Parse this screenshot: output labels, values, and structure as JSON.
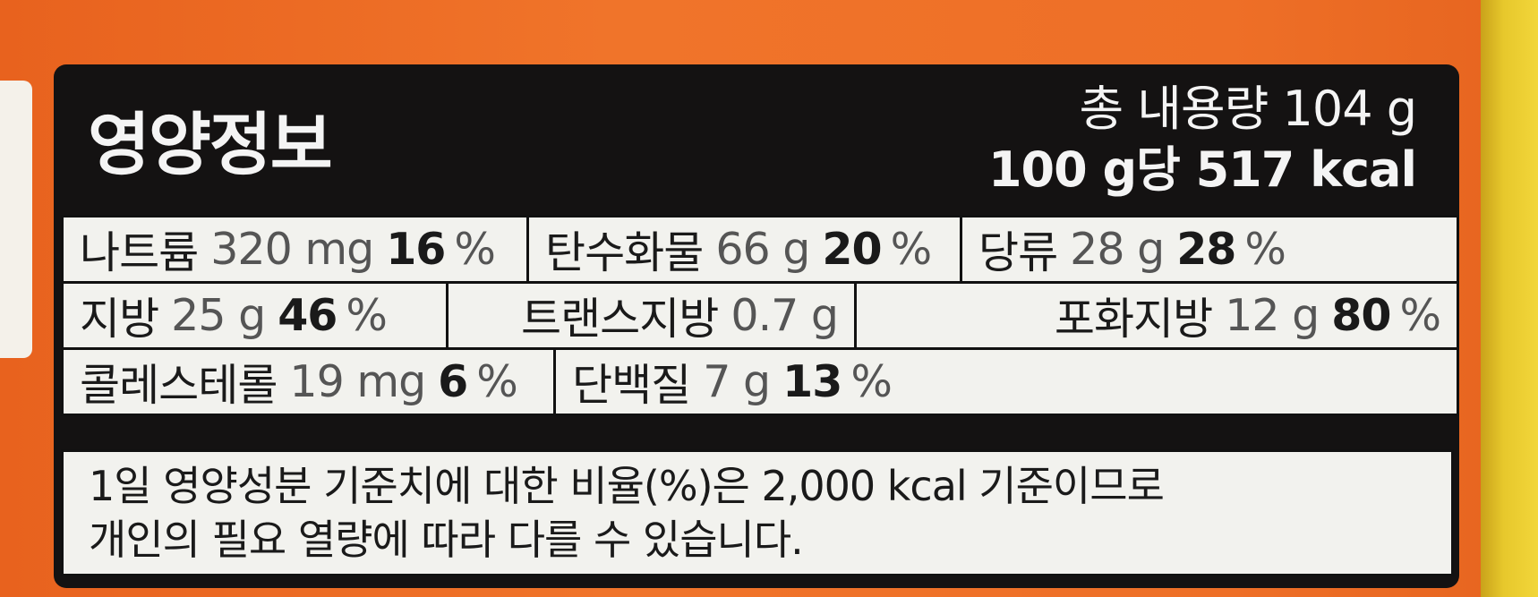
{
  "panel": {
    "title": "영양정보",
    "total_content": "총 내용량 104 g",
    "per_100g": "100 g당 517 kcal"
  },
  "nutrients": {
    "row1": [
      {
        "name": "나트륨",
        "amount": "320 mg",
        "pct": "16",
        "pct_sign": "%"
      },
      {
        "name": "탄수화물",
        "amount": "66 g",
        "pct": "20",
        "pct_sign": "%"
      },
      {
        "name": "당류",
        "amount": "28 g",
        "pct": "28",
        "pct_sign": "%"
      }
    ],
    "row2": [
      {
        "name": "지방",
        "amount": "25 g",
        "pct": "46",
        "pct_sign": "%"
      },
      {
        "name": "트랜스지방",
        "amount": "0.7 g"
      },
      {
        "name": "포화지방",
        "amount": "12 g",
        "pct": "80",
        "pct_sign": "%"
      }
    ],
    "row3": [
      {
        "name": "콜레스테롤",
        "amount": "19 mg",
        "pct": "6",
        "pct_sign": "%"
      },
      {
        "name": "단백질",
        "amount": "7 g",
        "pct": "13",
        "pct_sign": "%"
      }
    ]
  },
  "note": {
    "line1": "1일 영양성분 기준치에 대한 비율(%)은 2,000 kcal 기준이므로",
    "line2": "개인의 필요 열량에 따라 다를 수 있습니다."
  },
  "colors": {
    "package_orange": "#ee6f27",
    "panel_black": "#141212",
    "cell_white": "#f2f2ee"
  }
}
